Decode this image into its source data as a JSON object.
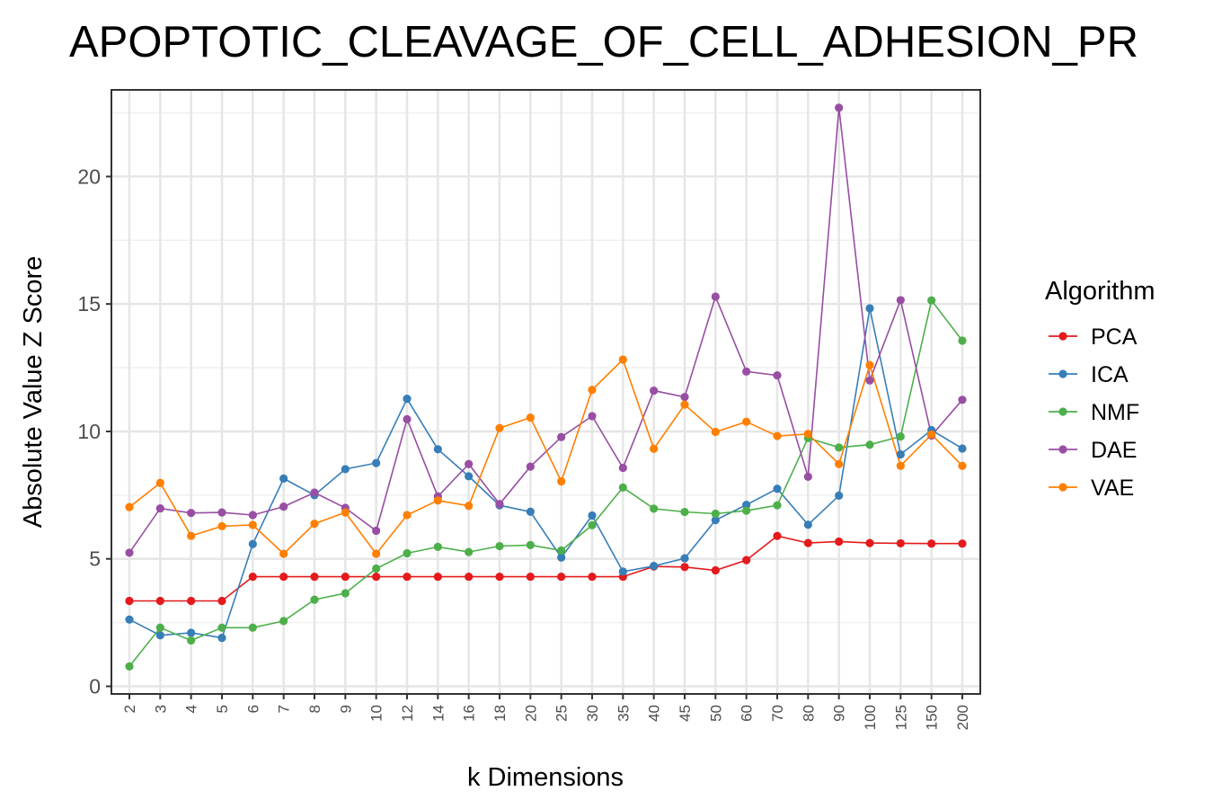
{
  "chart_data": {
    "type": "line",
    "title": "APOPTOTIC_CLEAVAGE_OF_CELL_ADHESION_PR",
    "xlabel": "k Dimensions",
    "ylabel": "Absolute Value Z Score",
    "categories": [
      "2",
      "3",
      "4",
      "5",
      "6",
      "7",
      "8",
      "9",
      "10",
      "12",
      "14",
      "16",
      "18",
      "20",
      "25",
      "30",
      "35",
      "40",
      "45",
      "50",
      "60",
      "70",
      "80",
      "90",
      "100",
      "125",
      "150",
      "200"
    ],
    "yticks": [
      0,
      5,
      10,
      15,
      20
    ],
    "ylim": [
      -0.3,
      23.4
    ],
    "grid": true,
    "legend": {
      "title": "Algorithm",
      "position": "right"
    },
    "series": [
      {
        "name": "PCA",
        "color": "#e41a1c",
        "values": [
          3.35,
          3.35,
          3.35,
          3.35,
          4.3,
          4.3,
          4.3,
          4.3,
          4.3,
          4.3,
          4.3,
          4.3,
          4.3,
          4.3,
          4.3,
          4.3,
          4.3,
          4.7,
          4.68,
          4.55,
          4.95,
          5.9,
          5.62,
          5.68,
          5.62,
          5.61,
          5.6,
          5.6
        ]
      },
      {
        "name": "ICA",
        "color": "#377eb8",
        "values": [
          2.62,
          2.0,
          2.1,
          1.9,
          5.58,
          8.15,
          7.5,
          8.52,
          8.76,
          11.28,
          9.3,
          8.24,
          7.1,
          6.85,
          5.05,
          6.7,
          4.5,
          4.72,
          5.02,
          6.52,
          7.12,
          7.75,
          6.34,
          7.48,
          14.83,
          9.1,
          10.05,
          9.33
        ]
      },
      {
        "name": "NMF",
        "color": "#4daf4a",
        "values": [
          0.78,
          2.3,
          1.8,
          2.3,
          2.3,
          2.56,
          3.4,
          3.65,
          4.62,
          5.22,
          5.47,
          5.27,
          5.5,
          5.54,
          5.33,
          6.32,
          7.8,
          6.97,
          6.84,
          6.77,
          6.89,
          7.1,
          9.74,
          9.37,
          9.48,
          9.8,
          15.14,
          13.56
        ]
      },
      {
        "name": "DAE",
        "color": "#984ea3",
        "values": [
          5.24,
          6.98,
          6.8,
          6.82,
          6.72,
          7.05,
          7.6,
          7.0,
          6.1,
          10.48,
          7.45,
          8.72,
          7.15,
          8.62,
          9.78,
          10.6,
          8.57,
          11.6,
          11.35,
          15.29,
          12.35,
          12.2,
          8.22,
          22.7,
          12.0,
          15.15,
          9.84,
          11.24
        ]
      },
      {
        "name": "VAE",
        "color": "#ff7f00",
        "values": [
          7.03,
          7.98,
          5.9,
          6.28,
          6.33,
          5.2,
          6.38,
          6.82,
          5.2,
          6.72,
          7.29,
          7.08,
          10.13,
          10.54,
          8.04,
          11.63,
          12.82,
          9.32,
          11.05,
          9.98,
          10.38,
          9.82,
          9.9,
          8.72,
          12.6,
          8.65,
          9.88,
          8.65
        ]
      }
    ]
  }
}
